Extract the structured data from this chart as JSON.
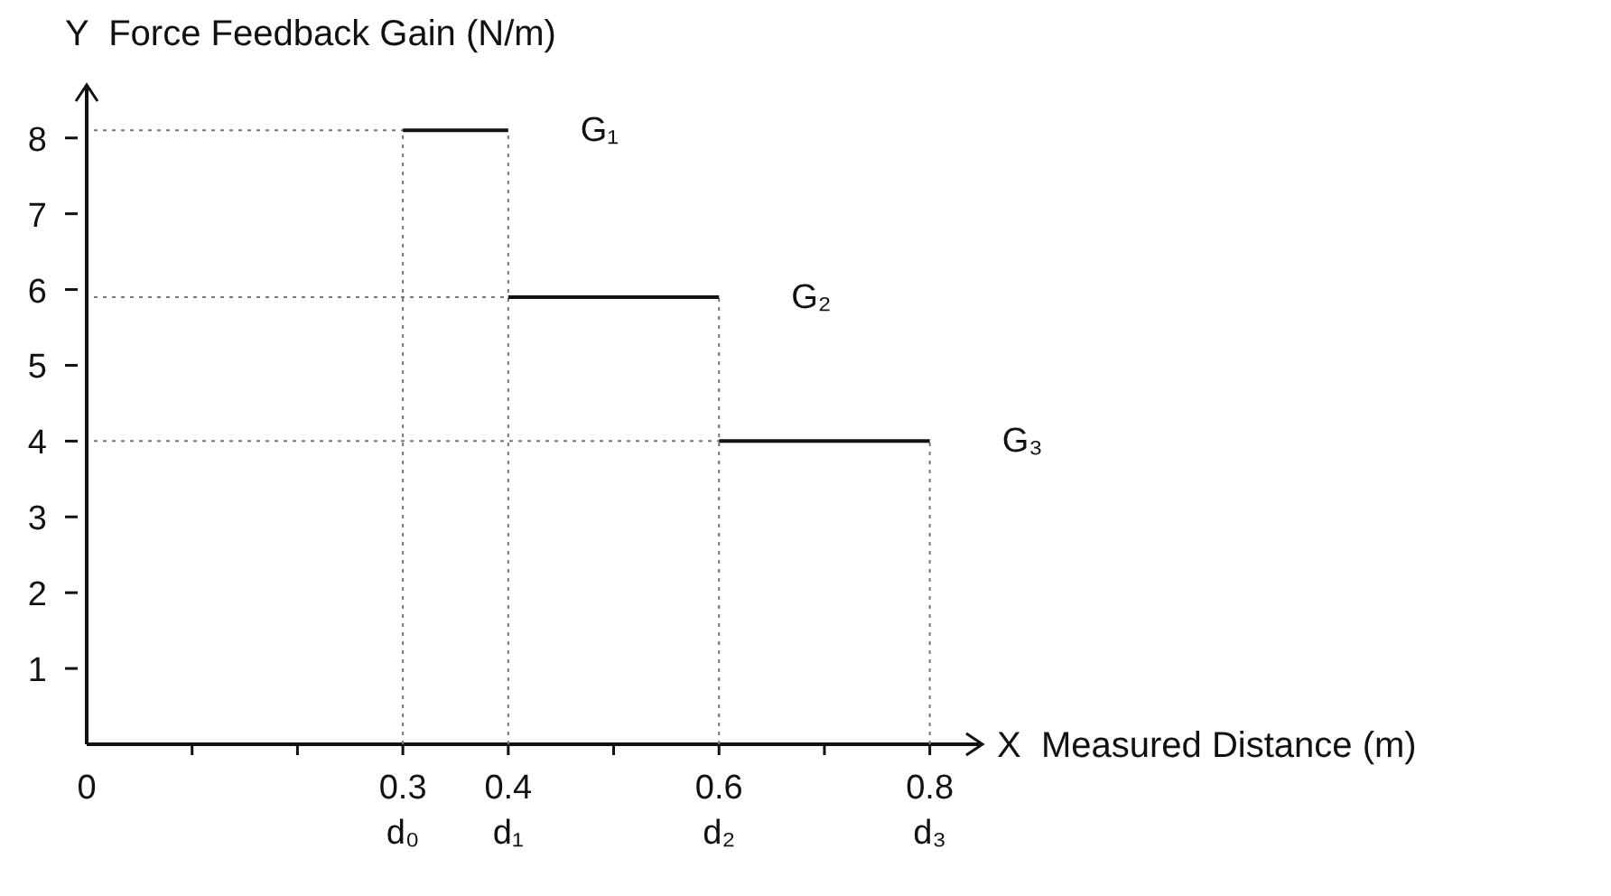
{
  "chart_data": {
    "type": "line",
    "xlabel": "X  Measured Distance (m)",
    "ylabel": "Y  Force Feedback Gain (N/m)",
    "xlim": [
      0,
      0.85
    ],
    "ylim": [
      0,
      8.7
    ],
    "xticks": [
      {
        "value": 0,
        "label": "0"
      },
      {
        "value": 0.1,
        "label": null
      },
      {
        "value": 0.2,
        "label": null
      },
      {
        "value": 0.3,
        "label": "0.3\nd₀"
      },
      {
        "value": 0.4,
        "label": "0.4\nd₁"
      },
      {
        "value": 0.5,
        "label": null
      },
      {
        "value": 0.6,
        "label": "0.6\nd₂"
      },
      {
        "value": 0.7,
        "label": null
      },
      {
        "value": 0.8,
        "label": "0.8\nd₃"
      }
    ],
    "yticks": [
      1,
      2,
      3,
      4,
      5,
      6,
      7,
      8
    ],
    "series": [
      {
        "name": "G₁",
        "color": "#111111",
        "x": [
          0.3,
          0.4
        ],
        "values": [
          8.1,
          8.1
        ]
      },
      {
        "name": "G₂",
        "color": "#111111",
        "x": [
          0.4,
          0.6
        ],
        "values": [
          5.9,
          5.9
        ]
      },
      {
        "name": "G₃",
        "color": "#111111",
        "x": [
          0.6,
          0.8
        ],
        "values": [
          4,
          4
        ]
      }
    ],
    "ref_lines": [
      {
        "axis": "y",
        "value": 8.1,
        "line_style": "dotted",
        "color": "#777777"
      },
      {
        "axis": "y",
        "value": 5.9,
        "line_style": "dotted",
        "color": "#777777"
      },
      {
        "axis": "y",
        "value": 4,
        "line_style": "dotted",
        "color": "#777777"
      },
      {
        "axis": "x",
        "value": 0.3,
        "line_style": "dotted",
        "color": "#777777"
      },
      {
        "axis": "x",
        "value": 0.4,
        "line_style": "dotted",
        "color": "#777777"
      },
      {
        "axis": "x",
        "value": 0.6,
        "line_style": "dotted",
        "color": "#777777"
      },
      {
        "axis": "x",
        "value": 0.8,
        "line_style": "dotted",
        "color": "#777777"
      }
    ],
    "marker": "none",
    "line_style": "solid"
  }
}
